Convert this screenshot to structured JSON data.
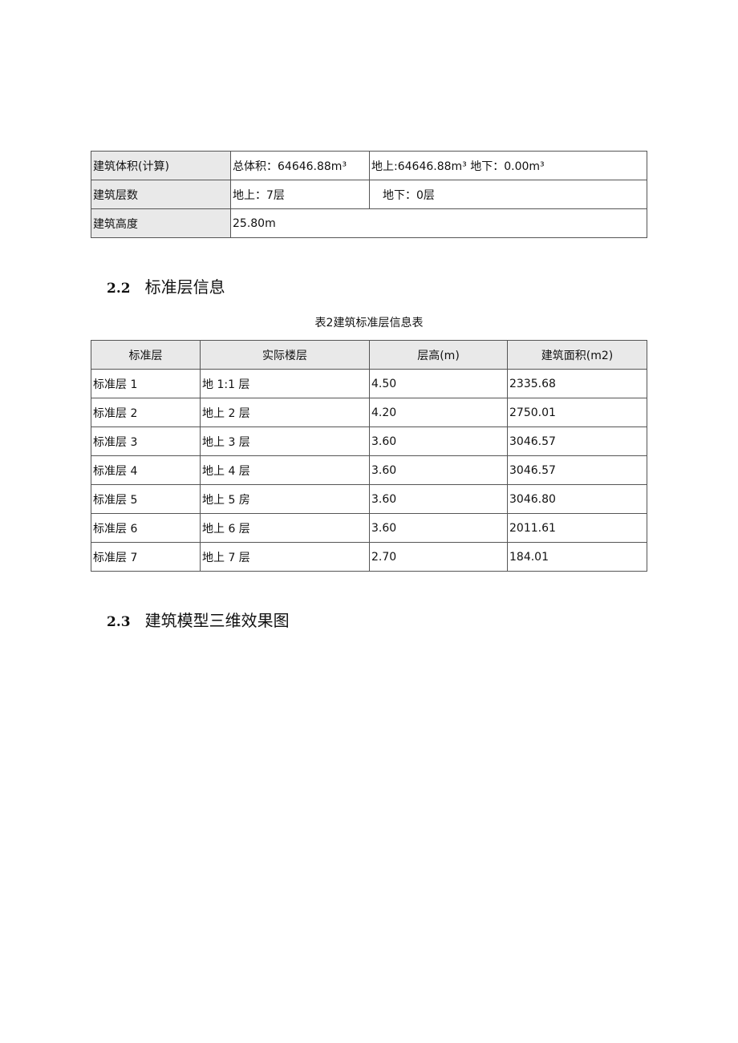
{
  "summary_table": {
    "rows": [
      {
        "label": "建筑体积(计算)",
        "cells": [
          "总体积：64646.88m³",
          "地上:64646.88m³ 地下：0.00m³"
        ]
      },
      {
        "label": "建筑层数",
        "cells": [
          "地上：7层",
          "地下：0层"
        ]
      },
      {
        "label": "建筑高度",
        "cells": [
          "25.80m"
        ]
      }
    ]
  },
  "section_2_2": {
    "number": "2.2",
    "title": "标准层信息"
  },
  "floor_table": {
    "caption": "表2建筑标准层信息表",
    "headers": [
      "标准层",
      "实际楼层",
      "层高(m)",
      "建筑面积(m2)"
    ],
    "rows": [
      [
        "标准层 1",
        "地 1:1 层",
        "4.50",
        "2335.68"
      ],
      [
        "标准层 2",
        "地上 2 层",
        "4.20",
        "2750.01"
      ],
      [
        "标准层 3",
        "地上 3 层",
        "3.60",
        "3046.57"
      ],
      [
        "标准层 4",
        "地上 4 层",
        "3.60",
        "3046.57"
      ],
      [
        "标准层 5",
        "地上 5 房",
        "3.60",
        "3046.80"
      ],
      [
        "标准层 6",
        "地上 6 层",
        "3.60",
        "2011.61"
      ],
      [
        "标准层 7",
        "地上 7 层",
        "2.70",
        "184.01"
      ]
    ]
  },
  "section_2_3": {
    "number": "2.3",
    "title": "建筑模型三维效果图"
  }
}
